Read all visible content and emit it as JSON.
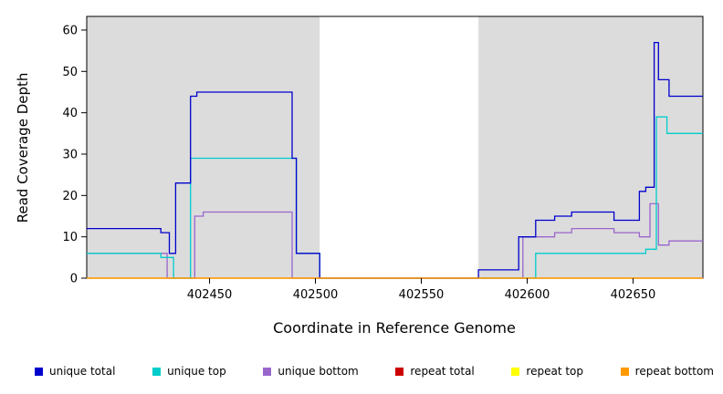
{
  "chart_data": {
    "type": "line",
    "subtype": "step-coverage-plot",
    "title": "",
    "xlabel": "Coordinate in Reference Genome",
    "ylabel": "Read Coverage Depth",
    "xlim": [
      402392,
      402683
    ],
    "ylim": [
      0,
      63.3
    ],
    "x_ticks": [
      402450,
      402500,
      402550,
      402600,
      402650
    ],
    "y_ticks": [
      0,
      10,
      20,
      30,
      40,
      50,
      60
    ],
    "grid": false,
    "background_color": "#ffffff",
    "shaded_regions": {
      "color": "#dcdcdc",
      "ranges": [
        [
          402392,
          402502
        ],
        [
          402577,
          402683
        ]
      ]
    },
    "series": [
      {
        "name": "unique bottom",
        "color": "#9966cc",
        "steps": [
          [
            402392,
            6
          ],
          [
            402430,
            0
          ],
          [
            402443,
            15
          ],
          [
            402447,
            16
          ],
          [
            402489,
            0
          ],
          [
            402598,
            10
          ],
          [
            402613,
            11
          ],
          [
            402621,
            12
          ],
          [
            402641,
            11
          ],
          [
            402653,
            10
          ],
          [
            402658,
            18
          ],
          [
            402662,
            8
          ],
          [
            402667,
            9
          ]
        ]
      },
      {
        "name": "unique top",
        "color": "#00cccc",
        "steps": [
          [
            402392,
            6
          ],
          [
            402427,
            5
          ],
          [
            402433,
            0
          ],
          [
            402441,
            29
          ],
          [
            402491,
            6
          ],
          [
            402502,
            0
          ],
          [
            402604,
            6
          ],
          [
            402656,
            7
          ],
          [
            402661,
            39
          ],
          [
            402666,
            35
          ]
        ]
      },
      {
        "name": "unique total",
        "color": "#0000cd",
        "steps": [
          [
            402392,
            12
          ],
          [
            402427,
            11
          ],
          [
            402431,
            6
          ],
          [
            402434,
            23
          ],
          [
            402441,
            44
          ],
          [
            402444,
            45
          ],
          [
            402489,
            29
          ],
          [
            402491,
            6
          ],
          [
            402502,
            0
          ],
          [
            402577,
            2
          ],
          [
            402596,
            10
          ],
          [
            402604,
            14
          ],
          [
            402613,
            15
          ],
          [
            402621,
            16
          ],
          [
            402641,
            14
          ],
          [
            402653,
            21
          ],
          [
            402656,
            22
          ],
          [
            402660,
            57
          ],
          [
            402662,
            48
          ],
          [
            402667,
            44
          ]
        ]
      },
      {
        "name": "repeat total",
        "color": "#cc0000",
        "steps": [
          [
            402392,
            0
          ]
        ]
      },
      {
        "name": "repeat top",
        "color": "#ffff00",
        "steps": [
          [
            402392,
            0
          ]
        ]
      },
      {
        "name": "repeat bottom",
        "color": "#ff9900",
        "steps": [
          [
            402392,
            0
          ]
        ]
      }
    ],
    "legend_position": "bottom",
    "legend": [
      {
        "label": "unique total",
        "color": "#0000cd"
      },
      {
        "label": "unique top",
        "color": "#00cccc"
      },
      {
        "label": "unique bottom",
        "color": "#9966cc"
      },
      {
        "label": "repeat total",
        "color": "#cc0000"
      },
      {
        "label": "repeat top",
        "color": "#ffff00"
      },
      {
        "label": "repeat bottom",
        "color": "#ff9900"
      }
    ]
  }
}
